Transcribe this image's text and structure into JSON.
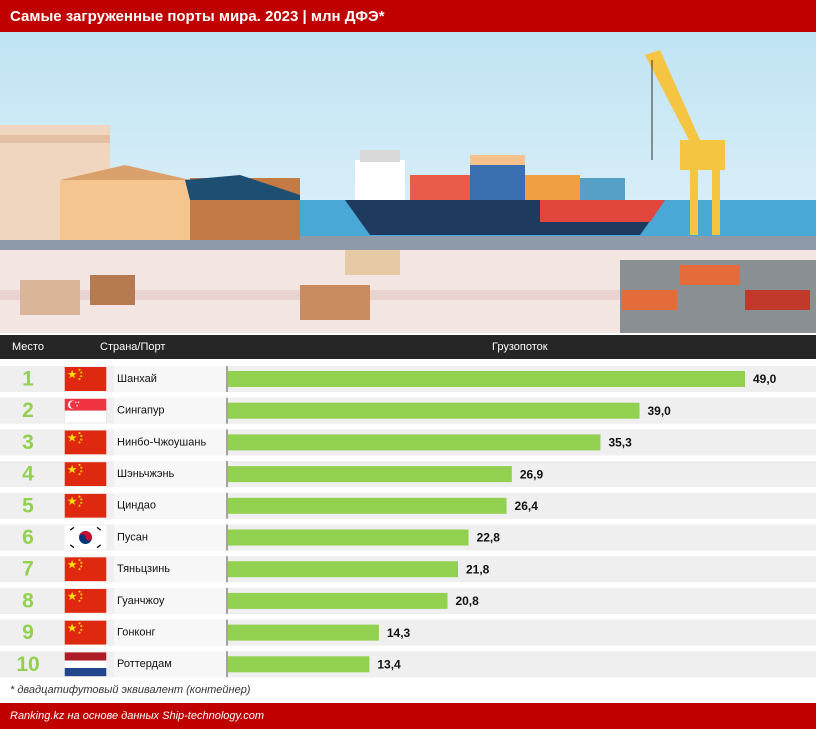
{
  "chart_data": {
    "type": "bar",
    "orientation": "horizontal",
    "title": "Самые загруженные порты мира. 2023 | млн ДФЭ*",
    "column_headers": [
      "Место",
      "Страна/Порт",
      "Грузопоток"
    ],
    "ranks": [
      "1",
      "2",
      "3",
      "4",
      "5",
      "6",
      "7",
      "8",
      "9",
      "10"
    ],
    "categories": [
      "Шанхай",
      "Сингапур",
      "Нинбо-Чжоушань",
      "Шэньчжэнь",
      "Циндао",
      "Пусан",
      "Тяньцзинь",
      "Гуанчжоу",
      "Гонконг",
      "Роттердам"
    ],
    "values": [
      49.0,
      39.0,
      35.3,
      26.9,
      26.4,
      22.8,
      21.8,
      20.8,
      14.3,
      13.4
    ],
    "value_labels": [
      "49,0",
      "39,0",
      "35,3",
      "26,9",
      "26,4",
      "22,8",
      "21,8",
      "20,8",
      "14,3",
      "13,4"
    ],
    "color": "#92d050",
    "xlim": [
      0,
      49.0
    ],
    "footnote": "* двадцатифутовый эквивалент (контейнер)",
    "source": "Ranking.kz на основе данных Ship-technology.com"
  }
}
